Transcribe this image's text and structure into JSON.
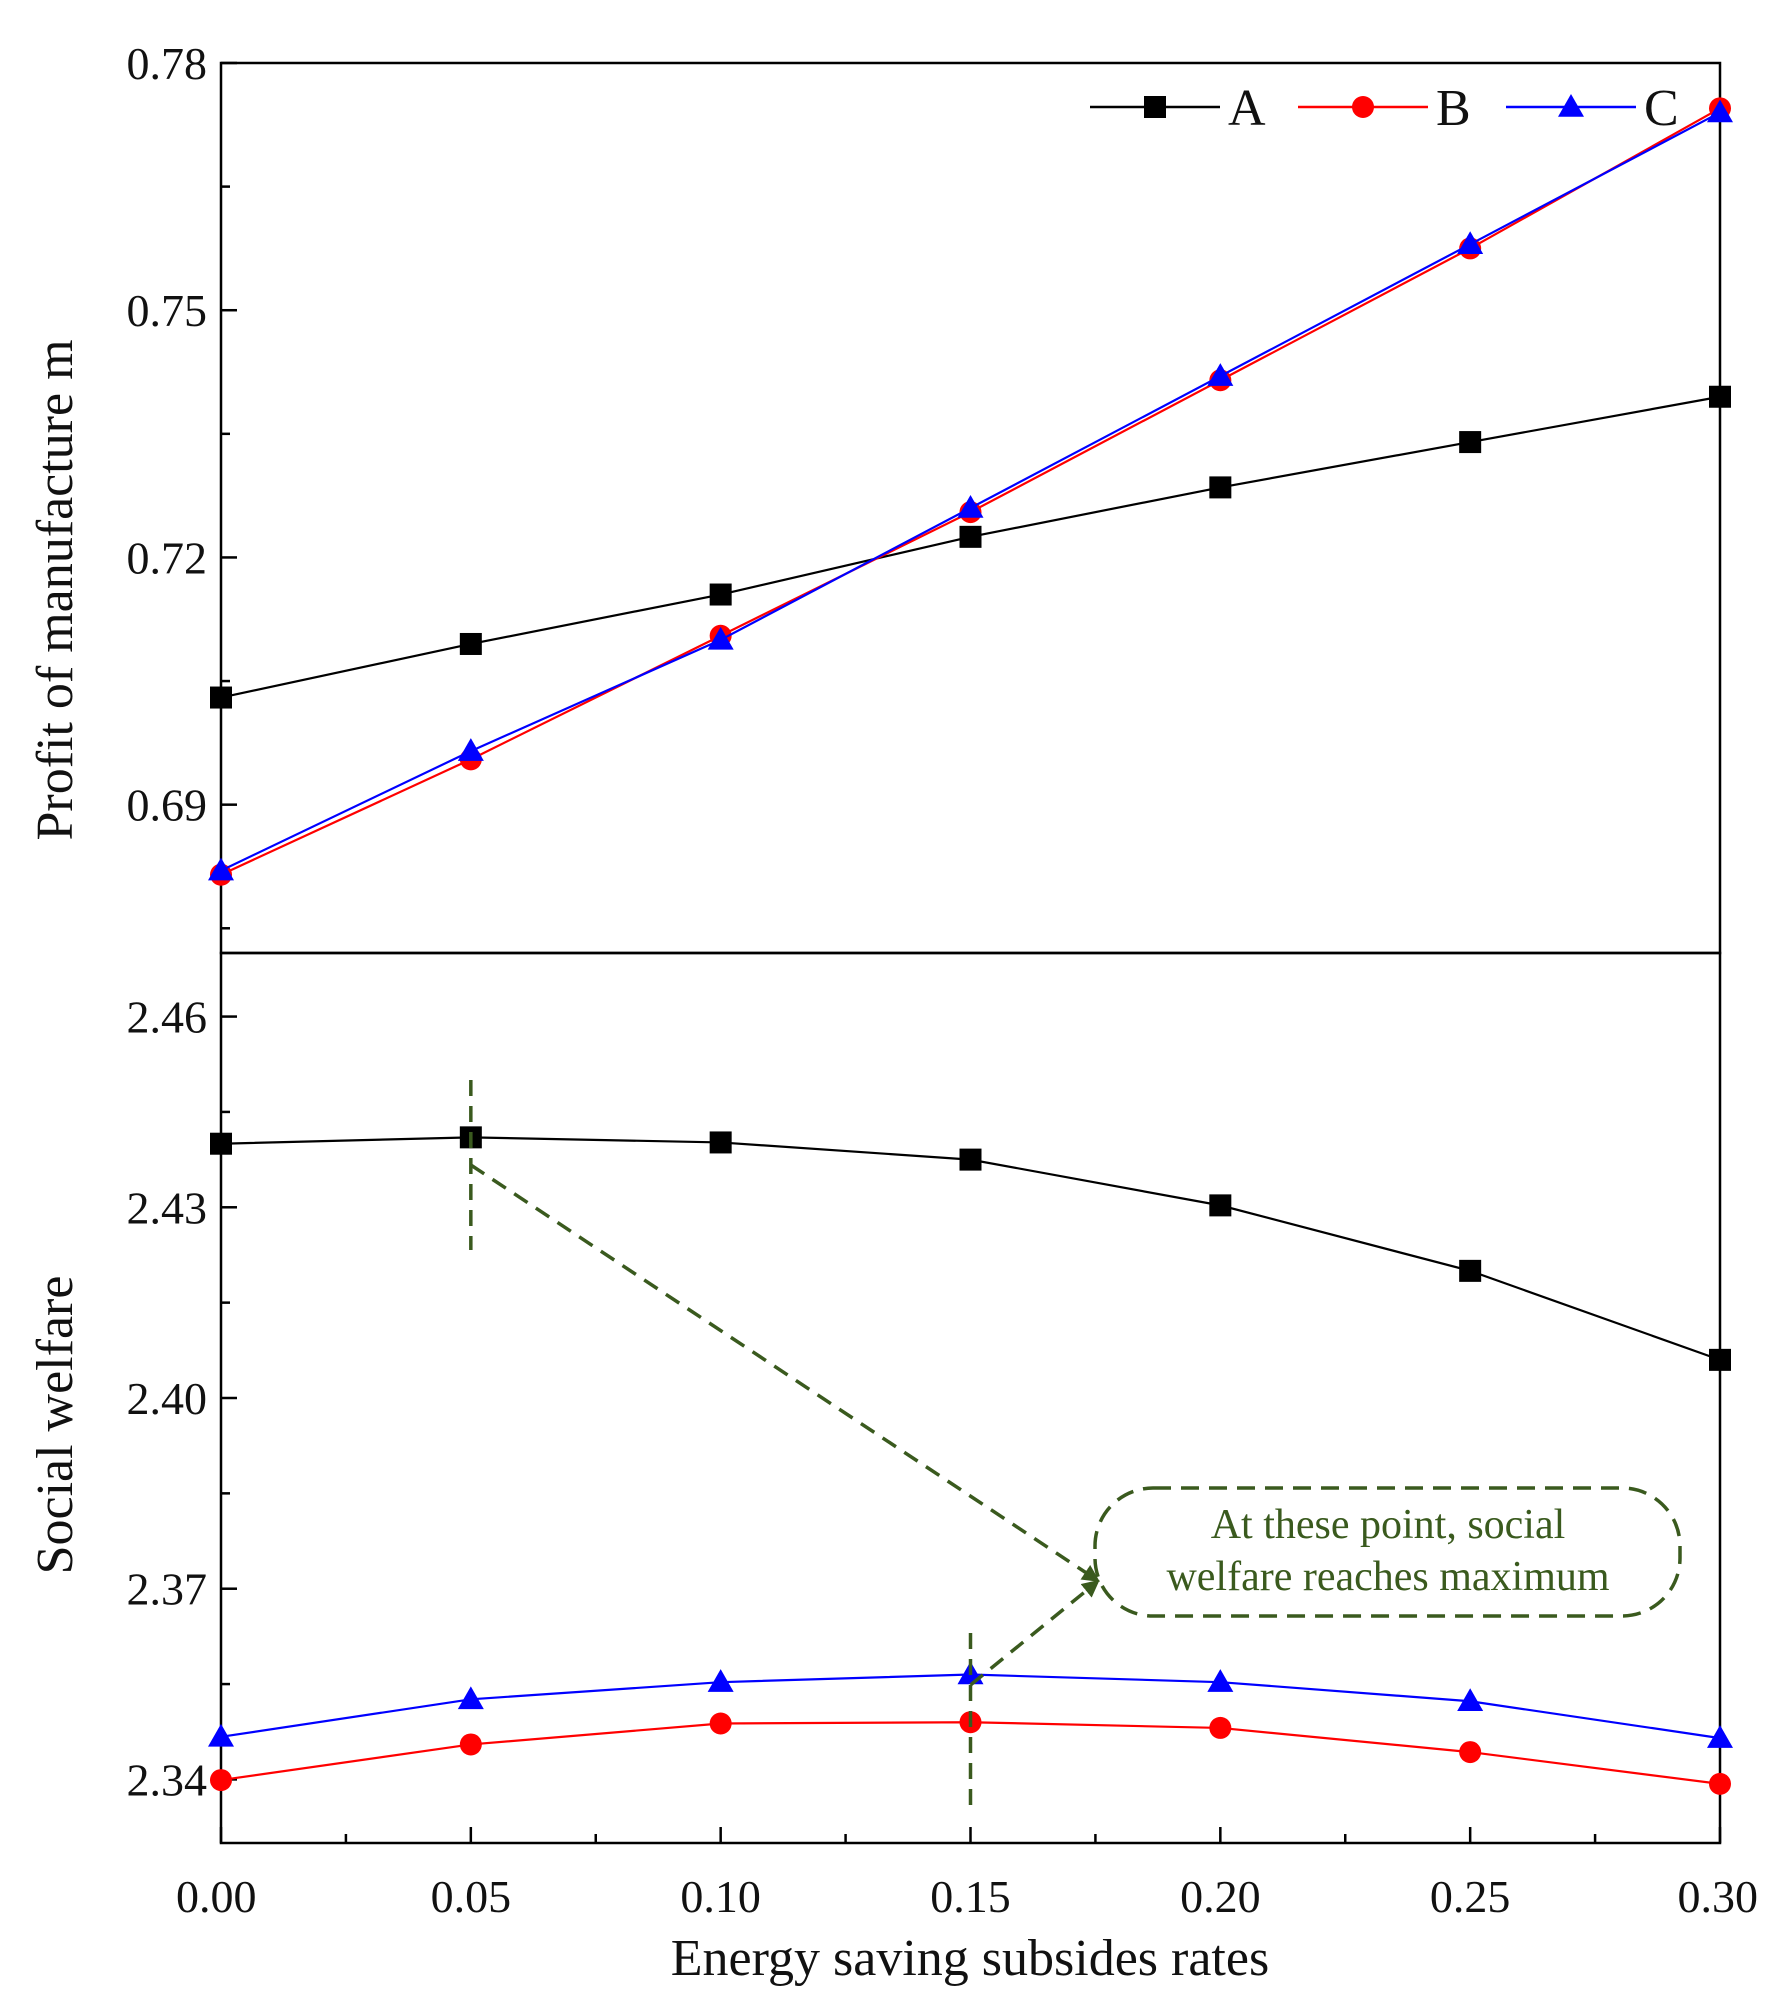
{
  "chart_data": [
    {
      "type": "line",
      "panel": "top",
      "ylabel": "Profit of manufacture m",
      "ylim": [
        0.672,
        0.78
      ],
      "yticks": [
        0.69,
        0.72,
        0.75,
        0.78
      ],
      "ytick_labels": [
        "0.69",
        "0.72",
        "0.75",
        "0.78"
      ],
      "x": [
        0.0,
        0.05,
        0.1,
        0.15,
        0.2,
        0.25,
        0.3
      ],
      "series": [
        {
          "name": "A",
          "color": "#000000",
          "marker": "square",
          "values": [
            0.703,
            0.7095,
            0.7155,
            0.7225,
            0.7285,
            0.734,
            0.7395
          ]
        },
        {
          "name": "B",
          "color": "#ff0000",
          "marker": "circle",
          "values": [
            0.6815,
            0.6955,
            0.7105,
            0.7255,
            0.7415,
            0.7575,
            0.7745
          ]
        },
        {
          "name": "C",
          "color": "#0000ff",
          "marker": "triangle",
          "values": [
            0.682,
            0.6965,
            0.71,
            0.726,
            0.742,
            0.758,
            0.774
          ]
        }
      ],
      "legend": {
        "placement": "top-right",
        "entries": [
          "A",
          "B",
          "C"
        ]
      }
    },
    {
      "type": "line",
      "panel": "bottom",
      "ylabel": "Social welfare",
      "xlabel": "Energy saving subsides rates",
      "ylim": [
        2.33,
        2.47
      ],
      "yticks": [
        2.34,
        2.37,
        2.4,
        2.43,
        2.46
      ],
      "ytick_labels": [
        "2.34",
        "2.37",
        "2.40",
        "2.43",
        "2.46"
      ],
      "xlim": [
        0.0,
        0.3
      ],
      "xticks": [
        0.0,
        0.05,
        0.1,
        0.15,
        0.2,
        0.25,
        0.3
      ],
      "xtick_labels": [
        "0.00",
        "0.05",
        "0.10",
        "0.15",
        "0.20",
        "0.25",
        "0.30"
      ],
      "x": [
        0.0,
        0.05,
        0.1,
        0.15,
        0.2,
        0.25,
        0.3
      ],
      "series": [
        {
          "name": "A",
          "color": "#000000",
          "marker": "square",
          "values": [
            2.44,
            2.441,
            2.4402,
            2.4375,
            2.4303,
            2.42,
            2.406
          ]
        },
        {
          "name": "B",
          "color": "#ff0000",
          "marker": "circle",
          "values": [
            2.3399,
            2.3455,
            2.3488,
            2.349,
            2.3481,
            2.3443,
            2.3393
          ]
        },
        {
          "name": "C",
          "color": "#0000ff",
          "marker": "triangle",
          "values": [
            2.3467,
            2.3526,
            2.3553,
            2.3565,
            2.3553,
            2.3523,
            2.3465
          ]
        }
      ],
      "annotation": {
        "lines": [
          "At these point, social",
          "welfare reaches maximum"
        ],
        "color": "#3a5a1e",
        "points": [
          {
            "series": "A",
            "x": 0.05
          },
          {
            "series": "C",
            "x": 0.15
          }
        ]
      }
    }
  ]
}
